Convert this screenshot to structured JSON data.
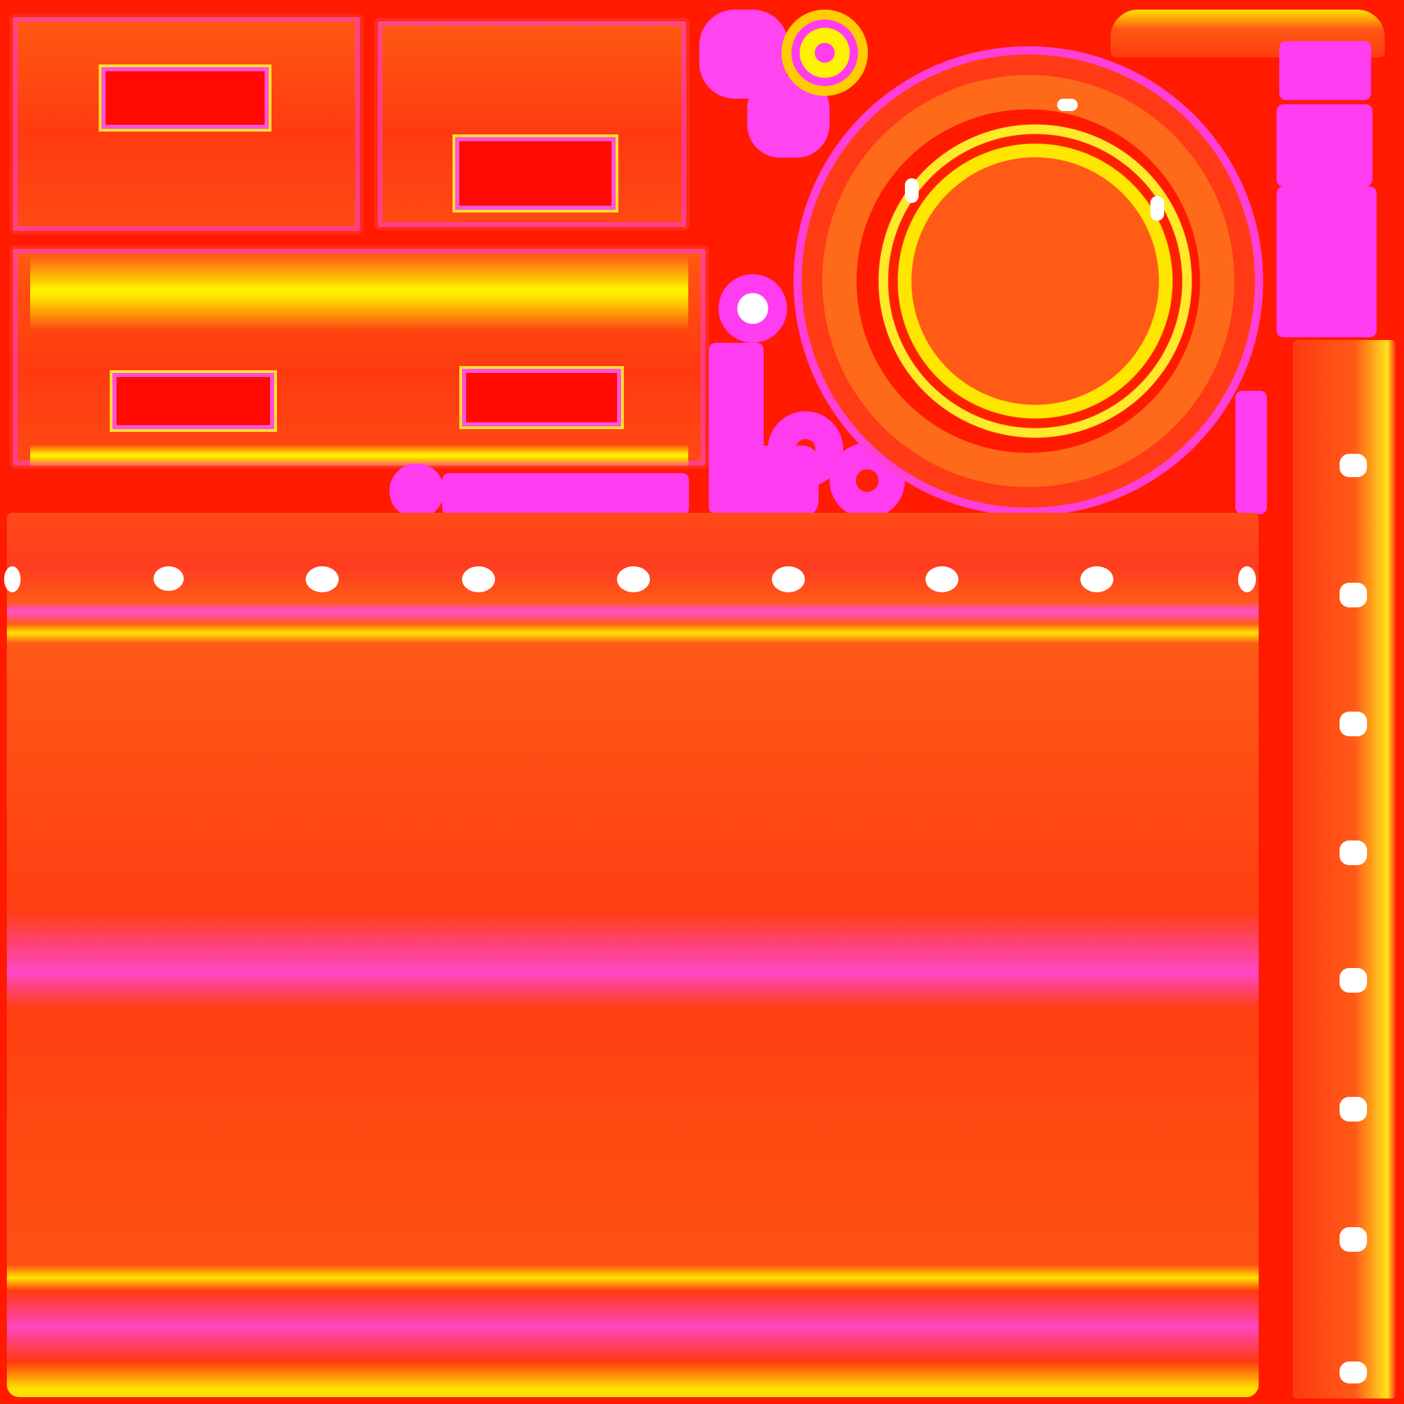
{
  "texture": {
    "kind": "uv-texture-atlas",
    "colors": {
      "background": "#ff1a00",
      "panel": "#ff4a14",
      "accent_yellow": "#fff200",
      "accent_magenta": "#ff3cf0",
      "highlight_white": "#ffffff"
    }
  }
}
